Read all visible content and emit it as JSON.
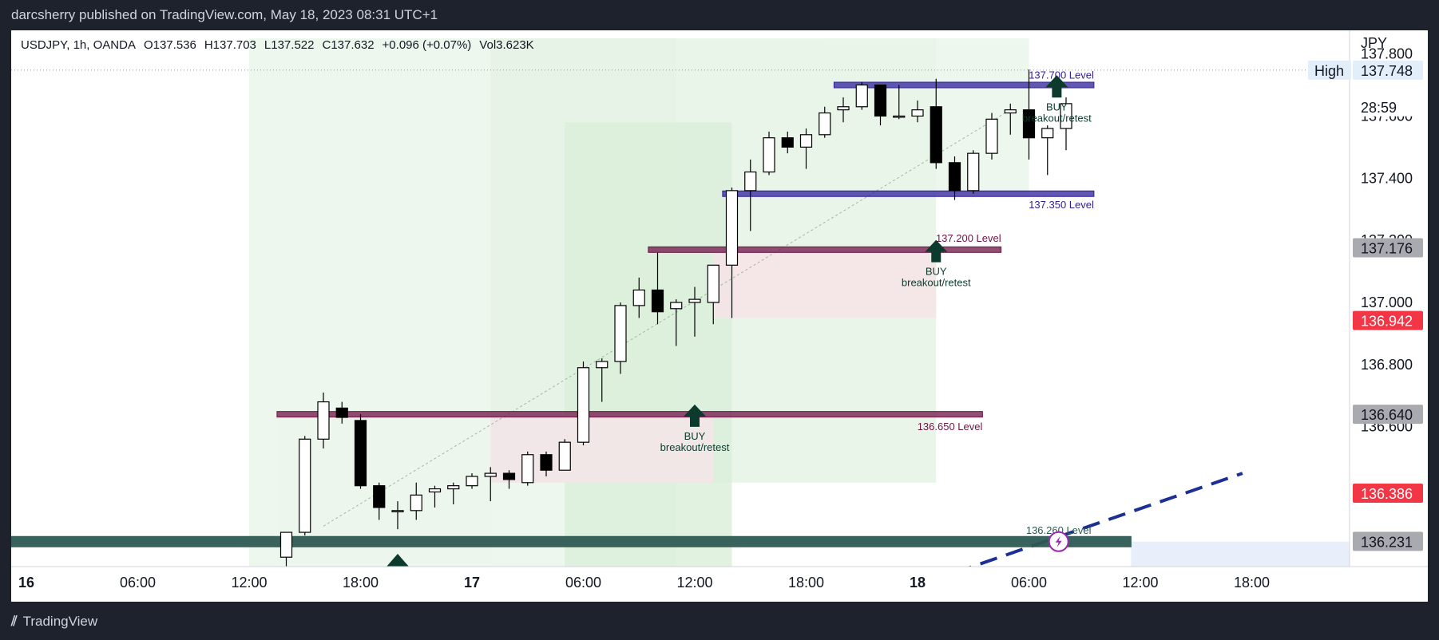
{
  "header": {
    "publisher": "darcsherry published on TradingView.com, May 18, 2023 08:31 UTC+1"
  },
  "legend": {
    "symbol": "USDJPY, 1h, OANDA",
    "open": "O137.536",
    "high": "H137.703",
    "low": "L137.522",
    "close": "C137.632",
    "change": "+0.096 (+0.07%)",
    "volume": "Vol3.623K"
  },
  "footer": {
    "brand": "TradingView"
  },
  "colors": {
    "up_body": "#ffffff",
    "down_body": "#000000",
    "candle_border": "#000000",
    "level_purple": "#2f1f9c",
    "level_maroon": "#6e1446",
    "level_teal": "#2e5a53",
    "buy_arrow": "#0c3b2e",
    "trendline": "#1b2f94",
    "badge_red": "#f23645",
    "badge_gray": "#a8aab0"
  },
  "chart_data": {
    "type": "candlestick",
    "symbol": "USDJPY",
    "timeframe": "1h",
    "currency": "JPY",
    "ylim": [
      136.16,
      137.84
    ],
    "y_ticks": [
      137.8,
      137.6,
      137.4,
      137.2,
      137.0,
      136.8,
      136.6
    ],
    "y_tick_labels": [
      "137.800",
      "137.600",
      "137.400",
      "137.200",
      "137.000",
      "136.800",
      "136.600"
    ],
    "x_ticks": [
      {
        "label": "16",
        "i": -24
      },
      {
        "label": "06:00",
        "i": -18
      },
      {
        "label": "12:00",
        "i": -12
      },
      {
        "label": "18:00",
        "i": -6
      },
      {
        "label": "17",
        "i": 0
      },
      {
        "label": "06:00",
        "i": 6
      },
      {
        "label": "12:00",
        "i": 12
      },
      {
        "label": "18:00",
        "i": 18
      },
      {
        "label": "18",
        "i": 24
      },
      {
        "label": "06:00",
        "i": 30
      },
      {
        "label": "12:00",
        "i": 36
      },
      {
        "label": "18:00",
        "i": 42
      }
    ],
    "candles": [
      {
        "i": -10,
        "o": 136.18,
        "h": 136.26,
        "l": 136.14,
        "c": 136.26
      },
      {
        "i": -9,
        "o": 136.26,
        "h": 136.57,
        "l": 136.25,
        "c": 136.56
      },
      {
        "i": -8,
        "o": 136.56,
        "h": 136.71,
        "l": 136.53,
        "c": 136.68
      },
      {
        "i": -7,
        "o": 136.66,
        "h": 136.68,
        "l": 136.61,
        "c": 136.63
      },
      {
        "i": -6,
        "o": 136.62,
        "h": 136.64,
        "l": 136.4,
        "c": 136.41
      },
      {
        "i": -5,
        "o": 136.41,
        "h": 136.42,
        "l": 136.3,
        "c": 136.34
      },
      {
        "i": -4,
        "o": 136.33,
        "h": 136.36,
        "l": 136.27,
        "c": 136.33
      },
      {
        "i": -3,
        "o": 136.33,
        "h": 136.42,
        "l": 136.3,
        "c": 136.38
      },
      {
        "i": -2,
        "o": 136.39,
        "h": 136.41,
        "l": 136.34,
        "c": 136.4
      },
      {
        "i": -1,
        "o": 136.4,
        "h": 136.42,
        "l": 136.35,
        "c": 136.41
      },
      {
        "i": 0,
        "o": 136.41,
        "h": 136.45,
        "l": 136.4,
        "c": 136.44
      },
      {
        "i": 1,
        "o": 136.44,
        "h": 136.47,
        "l": 136.36,
        "c": 136.45
      },
      {
        "i": 2,
        "o": 136.45,
        "h": 136.46,
        "l": 136.4,
        "c": 136.43
      },
      {
        "i": 3,
        "o": 136.42,
        "h": 136.52,
        "l": 136.41,
        "c": 136.51
      },
      {
        "i": 4,
        "o": 136.51,
        "h": 136.52,
        "l": 136.44,
        "c": 136.46
      },
      {
        "i": 5,
        "o": 136.46,
        "h": 136.56,
        "l": 136.46,
        "c": 136.55
      },
      {
        "i": 6,
        "o": 136.55,
        "h": 136.81,
        "l": 136.54,
        "c": 136.79
      },
      {
        "i": 7,
        "o": 136.79,
        "h": 136.82,
        "l": 136.68,
        "c": 136.81
      },
      {
        "i": 8,
        "o": 136.81,
        "h": 137.0,
        "l": 136.77,
        "c": 136.99
      },
      {
        "i": 9,
        "o": 136.99,
        "h": 137.08,
        "l": 136.95,
        "c": 137.04
      },
      {
        "i": 10,
        "o": 137.04,
        "h": 137.16,
        "l": 136.93,
        "c": 136.97
      },
      {
        "i": 11,
        "o": 136.98,
        "h": 137.01,
        "l": 136.86,
        "c": 137.0
      },
      {
        "i": 12,
        "o": 137.0,
        "h": 137.05,
        "l": 136.89,
        "c": 137.01
      },
      {
        "i": 13,
        "o": 137.0,
        "h": 137.12,
        "l": 136.93,
        "c": 137.12
      },
      {
        "i": 14,
        "o": 137.12,
        "h": 137.37,
        "l": 136.95,
        "c": 137.36
      },
      {
        "i": 15,
        "o": 137.36,
        "h": 137.46,
        "l": 137.23,
        "c": 137.42
      },
      {
        "i": 16,
        "o": 137.42,
        "h": 137.55,
        "l": 137.41,
        "c": 137.53
      },
      {
        "i": 17,
        "o": 137.53,
        "h": 137.55,
        "l": 137.48,
        "c": 137.5
      },
      {
        "i": 18,
        "o": 137.5,
        "h": 137.56,
        "l": 137.43,
        "c": 137.54
      },
      {
        "i": 19,
        "o": 137.54,
        "h": 137.63,
        "l": 137.53,
        "c": 137.61
      },
      {
        "i": 20,
        "o": 137.62,
        "h": 137.66,
        "l": 137.58,
        "c": 137.63
      },
      {
        "i": 21,
        "o": 137.63,
        "h": 137.71,
        "l": 137.62,
        "c": 137.7
      },
      {
        "i": 22,
        "o": 137.7,
        "h": 137.7,
        "l": 137.57,
        "c": 137.6
      },
      {
        "i": 23,
        "o": 137.6,
        "h": 137.7,
        "l": 137.59,
        "c": 137.6
      },
      {
        "i": 24,
        "o": 137.6,
        "h": 137.65,
        "l": 137.58,
        "c": 137.62
      },
      {
        "i": 25,
        "o": 137.63,
        "h": 137.72,
        "l": 137.43,
        "c": 137.45
      },
      {
        "i": 26,
        "o": 137.45,
        "h": 137.47,
        "l": 137.33,
        "c": 137.36
      },
      {
        "i": 27,
        "o": 137.36,
        "h": 137.49,
        "l": 137.35,
        "c": 137.48
      },
      {
        "i": 28,
        "o": 137.48,
        "h": 137.61,
        "l": 137.46,
        "c": 137.59
      },
      {
        "i": 29,
        "o": 137.61,
        "h": 137.64,
        "l": 137.54,
        "c": 137.62
      },
      {
        "i": 30,
        "o": 137.62,
        "h": 137.75,
        "l": 137.46,
        "c": 137.53
      },
      {
        "i": 31,
        "o": 137.53,
        "h": 137.57,
        "l": 137.41,
        "c": 137.56
      },
      {
        "i": 32,
        "o": 137.56,
        "h": 137.66,
        "l": 137.49,
        "c": 137.64
      }
    ],
    "levels": [
      {
        "label": "137.700 Level",
        "y": 137.7,
        "i_from": 19.5,
        "i_to": 33.5,
        "color": "#2f1f9c"
      },
      {
        "label": "137.350 Level",
        "y": 137.35,
        "i_from": 13.5,
        "i_to": 33.5,
        "color": "#2f1f9c"
      },
      {
        "label": "137.200 Level",
        "y": 137.17,
        "i_from": 9.5,
        "i_to": 28.5,
        "color": "#6e1446"
      },
      {
        "label": "136.650 Level",
        "y": 136.64,
        "i_from": -10.5,
        "i_to": 27.5,
        "color": "#6e1446"
      },
      {
        "label": "136.260 Level",
        "y": 136.23,
        "i_from": -25,
        "i_to": 35.5,
        "color": "#2e5a53"
      }
    ],
    "signals": [
      {
        "title": "BUY",
        "subtitle": "breakout/retest",
        "i": 31.5,
        "y": 137.68
      },
      {
        "title": "BUY",
        "subtitle": "breakout/retest",
        "i": 25,
        "y": 137.15
      },
      {
        "title": "BUY",
        "subtitle": "breakout/retest",
        "i": 12,
        "y": 136.62
      }
    ],
    "price_labels": [
      {
        "text": "137.748",
        "y": 137.748,
        "tag": "High"
      },
      {
        "text": "28:59",
        "y": 137.63
      },
      {
        "text": "137.176",
        "y": 137.176
      },
      {
        "text": "136.942",
        "y": 136.942
      },
      {
        "text": "136.640",
        "y": 136.64
      },
      {
        "text": "136.386",
        "y": 136.386
      },
      {
        "text": "136.231",
        "y": 136.231
      }
    ]
  }
}
